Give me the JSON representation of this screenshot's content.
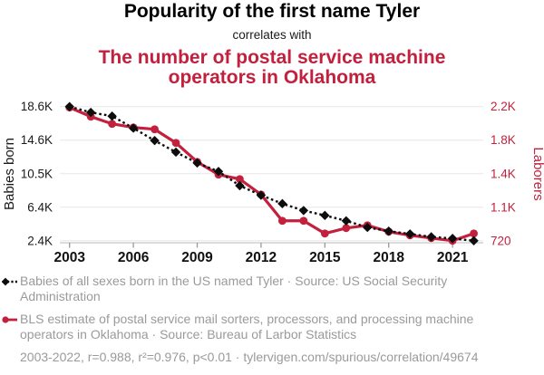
{
  "header": {
    "title": "Popularity of the first name Tyler",
    "connector": "correlates with",
    "subtitle": "The number of postal service machine operators in Oklahoma"
  },
  "chart_data": {
    "type": "line",
    "x_years": [
      2003,
      2004,
      2005,
      2006,
      2007,
      2008,
      2009,
      2010,
      2011,
      2012,
      2013,
      2014,
      2015,
      2016,
      2017,
      2018,
      2019,
      2020,
      2021,
      2022
    ],
    "x_tick_labels": [
      "2003",
      "2006",
      "2009",
      "2012",
      "2015",
      "2018",
      "2021"
    ],
    "series": [
      {
        "name": "Babies of all sexes born in the US named Tyler",
        "axis": "left",
        "color": "#0d0d0d",
        "style": "dotted-diamond",
        "values": [
          18600,
          17900,
          17450,
          16000,
          14500,
          13100,
          11800,
          10770,
          9050,
          7900,
          6880,
          6050,
          5460,
          4810,
          4010,
          3560,
          3220,
          2870,
          2680,
          2400
        ]
      },
      {
        "name": "BLS estimate of postal service mail sorters, processors, and processing machine operators in Oklahoma",
        "axis": "right",
        "color": "#c2203d",
        "style": "solid-circle",
        "values": [
          2190,
          2090,
          2010,
          1970,
          1950,
          1800,
          1590,
          1450,
          1400,
          1230,
          940,
          940,
          800,
          860,
          890,
          820,
          780,
          750,
          720,
          800
        ]
      }
    ],
    "left_axis": {
      "label": "Babies born",
      "min": 2400,
      "max": 18600,
      "tick_labels": [
        "2.4K",
        "6.4K",
        "10.5K",
        "14.6K",
        "18.6K"
      ]
    },
    "right_axis": {
      "label": "Laborers",
      "min": 720,
      "max": 2200,
      "tick_labels": [
        "720",
        "1.1K",
        "1.4K",
        "1.8K",
        "2.2K"
      ]
    },
    "grid": "horizontal",
    "legend_position": "below"
  },
  "legend": {
    "items": [
      {
        "marker": "black-diamond-dotted-line",
        "text": "Babies of all sexes born in the US named Tyler · Source: US Social Security Administration"
      },
      {
        "marker": "red-circle-solid-line",
        "text": "BLS estimate of postal service mail sorters, processors, and processing machine operators in Oklahoma · Source: Bureau of Larbor Statistics"
      }
    ]
  },
  "footer": {
    "text": "2003-2022, r=0.988, r²=0.976, p<0.01 · tylervigen.com/spurious/correlation/49674"
  },
  "colors": {
    "accent_red": "#c2203d",
    "line_black": "#0d0d0d",
    "muted_text": "#9a9a9a",
    "grid": "#e7e7e7",
    "axis_line": "#c8c8c8",
    "tick_text": "#1a1a1a"
  }
}
